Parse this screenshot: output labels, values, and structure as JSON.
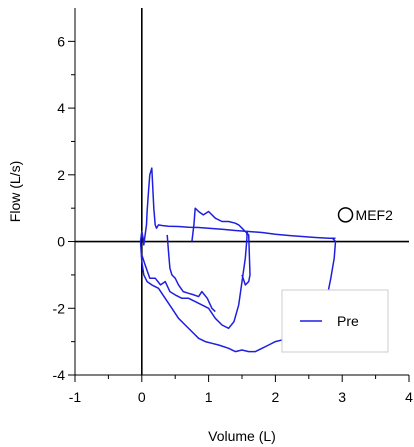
{
  "chart_data": {
    "type": "line",
    "xlabel": "Volume (L)",
    "ylabel": "Flow (L/s)",
    "xlim": [
      -1,
      4
    ],
    "ylim": [
      -4,
      7
    ],
    "x_ticks": [
      -1,
      0,
      1,
      2,
      3,
      4
    ],
    "y_ticks": [
      -4,
      -2,
      0,
      2,
      4,
      6
    ],
    "x_tick_labels": [
      "-1",
      "0",
      "1",
      "2",
      "3",
      "4"
    ],
    "y_tick_labels": [
      "-4",
      "-2",
      "0",
      "2",
      "4",
      "6"
    ],
    "grid": false,
    "legend": {
      "placement": "bottom-right",
      "entries": [
        "Pre"
      ]
    },
    "series": [
      {
        "name": "Pre",
        "color": "#1f1fe0",
        "x": [
          -0.02,
          0.0,
          0.02,
          0.03,
          0.05,
          0.07,
          0.08,
          0.1,
          0.12,
          0.15,
          0.18,
          0.2,
          0.22,
          0.25,
          0.3,
          0.4,
          0.55,
          0.7,
          0.85,
          1.0,
          1.2,
          1.4,
          1.6,
          1.8,
          2.0,
          2.2,
          2.4,
          2.6,
          2.8,
          2.9
        ],
        "y": [
          0.0,
          0.3,
          0.1,
          -0.1,
          0.2,
          0.5,
          0.9,
          1.5,
          2.0,
          2.2,
          1.0,
          0.5,
          0.4,
          0.5,
          0.48,
          0.46,
          0.45,
          0.43,
          0.42,
          0.4,
          0.37,
          0.33,
          0.3,
          0.27,
          0.22,
          0.18,
          0.15,
          0.12,
          0.1,
          0.1
        ]
      },
      {
        "name": "",
        "color": "#1f1fe0",
        "x": [
          -0.02,
          0.0,
          0.03,
          0.08,
          0.15,
          0.25,
          0.35,
          0.45,
          0.55,
          0.65,
          0.75,
          0.85,
          0.95,
          1.05,
          1.15,
          1.3,
          1.4,
          1.5,
          1.6,
          1.7,
          1.8,
          1.9,
          2.0,
          2.2,
          2.4,
          2.55,
          2.65,
          2.72,
          2.78,
          2.83,
          2.88,
          2.9,
          2.88,
          2.85
        ],
        "y": [
          0.0,
          -0.6,
          -1.0,
          -1.2,
          -1.3,
          -1.4,
          -1.7,
          -2.0,
          -2.3,
          -2.5,
          -2.7,
          -2.9,
          -3.0,
          -3.05,
          -3.1,
          -3.2,
          -3.3,
          -3.25,
          -3.3,
          -3.3,
          -3.2,
          -3.1,
          -3.0,
          -2.9,
          -2.7,
          -2.5,
          -2.2,
          -1.9,
          -1.6,
          -1.1,
          -0.5,
          0.0,
          0.05,
          0.1
        ]
      },
      {
        "name": "",
        "color": "#1f1fe0",
        "x": [
          0.0,
          0.05,
          0.12,
          0.2,
          0.28,
          0.35,
          0.42,
          0.5,
          0.6,
          0.7,
          0.8,
          0.9,
          1.0,
          1.1,
          1.2,
          1.3,
          1.38,
          1.45,
          1.5,
          1.55,
          1.57,
          1.58,
          1.57
        ],
        "y": [
          -0.4,
          -0.7,
          -1.1,
          -1.1,
          -1.3,
          -1.2,
          -1.5,
          -1.6,
          -1.7,
          -1.7,
          -1.8,
          -1.9,
          -2.0,
          -2.3,
          -2.5,
          -2.6,
          -2.4,
          -1.9,
          -1.2,
          -0.5,
          0.0,
          0.3,
          0.2
        ]
      },
      {
        "name": "",
        "color": "#1f1fe0",
        "x": [
          0.38,
          0.4,
          0.42,
          0.45,
          0.5,
          0.55,
          0.62,
          0.7,
          0.78,
          0.85,
          0.9,
          0.98,
          1.05,
          1.1
        ],
        "y": [
          0.2,
          -0.3,
          -0.8,
          -1.0,
          -1.1,
          -1.3,
          -1.5,
          -1.55,
          -1.6,
          -1.65,
          -1.5,
          -1.7,
          -2.0,
          -2.1
        ],
        "comment": ""
      },
      {
        "name": "",
        "color": "#1f1fe0",
        "x": [
          0.75,
          0.78,
          0.8,
          0.85,
          0.92,
          1.0,
          1.1,
          1.2,
          1.3,
          1.4,
          1.45,
          1.5,
          1.55,
          1.6,
          1.62,
          1.6,
          1.55,
          1.5
        ],
        "y": [
          0.0,
          0.5,
          1.0,
          0.9,
          0.8,
          0.9,
          0.7,
          0.6,
          0.6,
          0.55,
          0.5,
          0.4,
          0.3,
          0.2,
          -1.0,
          -1.2,
          -1.3,
          -1.0
        ]
      }
    ],
    "markers": [
      {
        "label": "MEF2",
        "x": 3.05,
        "y": 0.8
      }
    ]
  }
}
